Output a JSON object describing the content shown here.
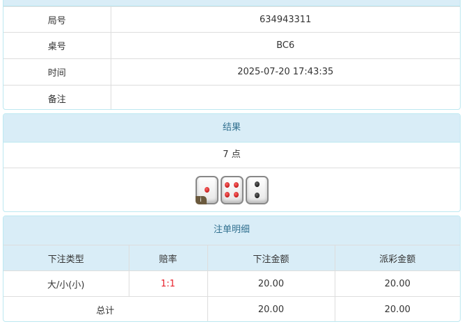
{
  "info": {
    "rows": [
      {
        "label": "局号",
        "value": "634943311"
      },
      {
        "label": "桌号",
        "value": "BC6"
      },
      {
        "label": "时间",
        "value": "2025-07-20 17:43:35"
      },
      {
        "label": "备注",
        "value": ""
      }
    ]
  },
  "result": {
    "title": "结果",
    "points": "7 点",
    "dice": [
      1,
      4,
      2
    ],
    "info_badge": "i"
  },
  "bets": {
    "title": "注单明细",
    "headers": [
      "下注类型",
      "赔率",
      "下注金额",
      "派彩金额"
    ],
    "rows": [
      {
        "type": "大/小(小)",
        "odds": "1:1",
        "amount": "20.00",
        "payout": "20.00"
      }
    ],
    "total": {
      "label": "总计",
      "amount": "20.00",
      "payout": "20.00"
    }
  },
  "colors": {
    "header_bg": "#d9edf7",
    "header_text": "#31708f",
    "odds": "#e8202a"
  }
}
